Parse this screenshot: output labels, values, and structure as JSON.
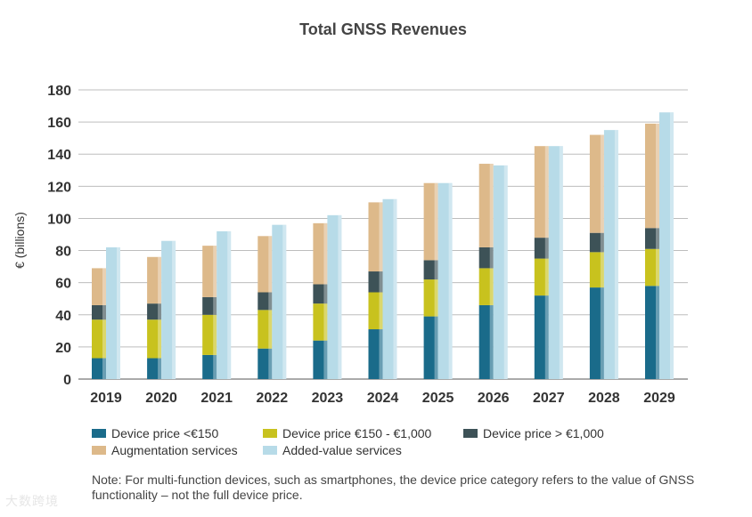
{
  "chart_data": {
    "type": "bar",
    "title": "Total GNSS Revenues",
    "ylabel": "€ (billions)",
    "xlabel": "",
    "ylim": [
      0,
      180
    ],
    "yticks": [
      0,
      20,
      40,
      60,
      80,
      100,
      120,
      140,
      160,
      180
    ],
    "grid": true,
    "categories": [
      "2019",
      "2020",
      "2021",
      "2022",
      "2023",
      "2024",
      "2025",
      "2026",
      "2027",
      "2028",
      "2029"
    ],
    "stack_1": {
      "series": [
        {
          "name": "Device price <€150",
          "color": "#1a6b8a",
          "values": [
            13,
            13,
            15,
            19,
            24,
            31,
            39,
            46,
            52,
            57,
            58
          ]
        },
        {
          "name": "Device price €150 - €1,000",
          "color": "#c8c21e",
          "values": [
            24,
            24,
            25,
            24,
            23,
            23,
            23,
            23,
            23,
            22,
            23
          ]
        },
        {
          "name": "Device price > €1,000",
          "color": "#3d5257",
          "values": [
            9,
            10,
            11,
            11,
            12,
            13,
            12,
            13,
            13,
            12,
            13
          ]
        },
        {
          "name": "Augmentation services",
          "color": "#ddb98a",
          "values": [
            23,
            29,
            32,
            35,
            38,
            43,
            48,
            52,
            57,
            61,
            65
          ]
        }
      ]
    },
    "stack_2": {
      "series": [
        {
          "name": "Added-value services",
          "color": "#b7dbe8",
          "values": [
            82,
            86,
            92,
            96,
            102,
            112,
            122,
            133,
            145,
            155,
            166
          ]
        }
      ]
    }
  },
  "legend": [
    {
      "label": "Device price <€150",
      "color": "#1a6b8a"
    },
    {
      "label": "Device price €150 - €1,000",
      "color": "#c8c21e"
    },
    {
      "label": "Device price > €1,000",
      "color": "#3d5257"
    },
    {
      "label": "Augmentation services",
      "color": "#ddb98a"
    },
    {
      "label": "Added-value services",
      "color": "#b7dbe8"
    }
  ],
  "note": "Note: For multi-function devices, such as smartphones, the device price category refers to the value of GNSS functionality – not the full device price.",
  "watermark": "大数跨境"
}
